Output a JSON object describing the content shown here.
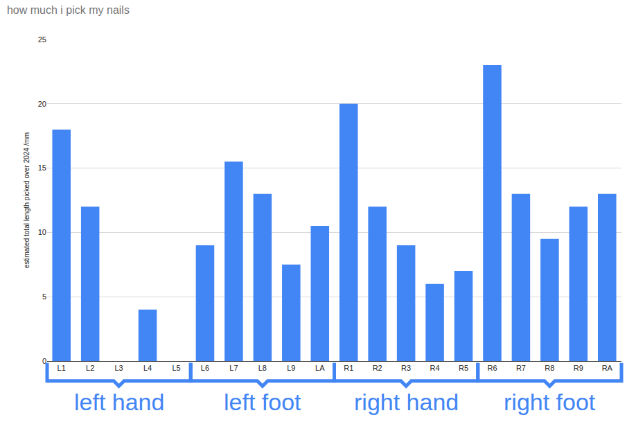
{
  "chart_data": {
    "type": "bar",
    "title": "how much i pick my nails",
    "y_label": "estimated total length picked over 2024 /mm",
    "categories": [
      "L1",
      "L2",
      "L3",
      "L4",
      "L5",
      "L6",
      "L7",
      "L8",
      "L9",
      "LA",
      "R1",
      "R2",
      "R3",
      "R4",
      "R5",
      "R6",
      "R7",
      "R8",
      "R9",
      "RA"
    ],
    "values": [
      18,
      12,
      0,
      4,
      0,
      9,
      15.5,
      13,
      7.5,
      10.5,
      20,
      12,
      9,
      6,
      7,
      23,
      13,
      9.5,
      12,
      13
    ],
    "color": "#4285f4",
    "ylim": [
      0,
      25
    ],
    "yticks": [
      0,
      5,
      10,
      15,
      20,
      25
    ],
    "grid": true,
    "groups": [
      {
        "label": "left hand",
        "from": "L1",
        "to": "L5"
      },
      {
        "label": "left foot",
        "from": "L6",
        "to": "LA"
      },
      {
        "label": "right hand",
        "from": "R1",
        "to": "R5"
      },
      {
        "label": "right foot",
        "from": "R6",
        "to": "RA"
      }
    ]
  }
}
